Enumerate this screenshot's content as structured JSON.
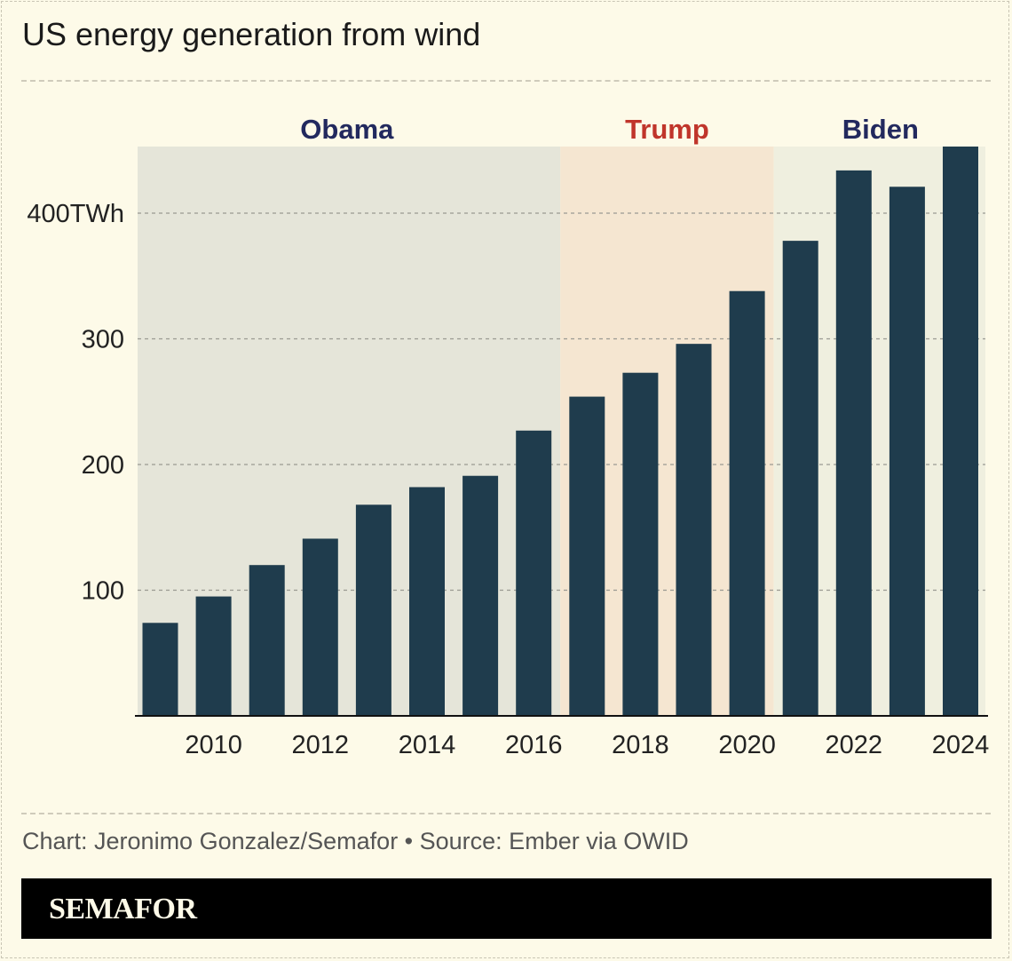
{
  "header": {
    "title": "US energy generation from wind"
  },
  "footer": {
    "credit": "Chart: Jeronimo Gonzalez/Semafor • Source: Ember via OWID",
    "brand": "SEMAFOR"
  },
  "colors": {
    "bar": "#1f3c4d",
    "obama_band": "#e5e5d9",
    "trump_band": "#f5e6d1",
    "biden_band": "#efefdf",
    "obama_label": "#22295e",
    "trump_label": "#c0352b",
    "biden_label": "#22295e",
    "background": "#fdfae8"
  },
  "chart_data": {
    "type": "bar",
    "title": "US energy generation from wind",
    "xlabel": "",
    "ylabel": "TWh",
    "categories": [
      "2009",
      "2010",
      "2011",
      "2012",
      "2013",
      "2014",
      "2015",
      "2016",
      "2017",
      "2018",
      "2019",
      "2020",
      "2021",
      "2022",
      "2023",
      "2024"
    ],
    "values": [
      74,
      95,
      120,
      141,
      168,
      182,
      191,
      227,
      254,
      273,
      296,
      338,
      378,
      434,
      421,
      453
    ],
    "ylim": [
      0,
      453
    ],
    "yticks": [
      {
        "value": 100,
        "label": "100"
      },
      {
        "value": 200,
        "label": "200"
      },
      {
        "value": 300,
        "label": "300"
      },
      {
        "value": 400,
        "label": "400TWh"
      }
    ],
    "xtick_labels": [
      "2010",
      "2012",
      "2014",
      "2016",
      "2018",
      "2020",
      "2022",
      "2024"
    ],
    "grid": true,
    "periods": [
      {
        "name": "Obama",
        "start": 2009,
        "end": 2016,
        "colorKey": "obama"
      },
      {
        "name": "Trump",
        "start": 2017,
        "end": 2020,
        "colorKey": "trump"
      },
      {
        "name": "Biden",
        "start": 2021,
        "end": 2024,
        "colorKey": "biden"
      }
    ]
  }
}
